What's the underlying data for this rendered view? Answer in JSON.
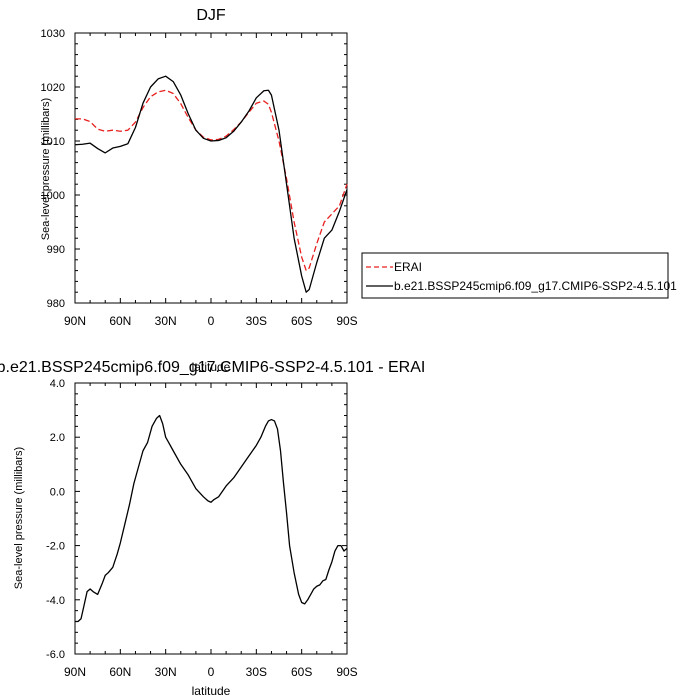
{
  "chart_data": [
    {
      "type": "line",
      "title": "DJF",
      "xlabel": "latitude",
      "ylabel": "Sea-level pressure (millibars)",
      "xlim": [
        90,
        -90
      ],
      "ylim": [
        980,
        1030
      ],
      "x_ticks": [
        90,
        60,
        30,
        0,
        -30,
        -60,
        -90
      ],
      "x_tick_labels": [
        "90N",
        "60N",
        "30N",
        "0",
        "30S",
        "60S",
        "90S"
      ],
      "y_ticks": [
        980,
        990,
        1000,
        1010,
        1020,
        1030
      ],
      "y_tick_labels": [
        "980",
        "990",
        "1000",
        "1010",
        "1020",
        "1030"
      ],
      "grid": false,
      "legend_position": "right",
      "series": [
        {
          "name": "ERAI",
          "color": "#e8201f",
          "dash": "dashed",
          "x": [
            90,
            85,
            80,
            75,
            70,
            65,
            60,
            55,
            50,
            45,
            40,
            35,
            30,
            25,
            20,
            15,
            10,
            5,
            0,
            -5,
            -10,
            -15,
            -20,
            -25,
            -30,
            -35,
            -38,
            -40,
            -45,
            -50,
            -55,
            -60,
            -63,
            -65,
            -70,
            -75,
            -80,
            -85,
            -90
          ],
          "y": [
            1014.1,
            1014.1,
            1013.6,
            1012.2,
            1011.8,
            1012.0,
            1011.8,
            1012.0,
            1013.5,
            1016.2,
            1018.2,
            1019.1,
            1019.4,
            1018.8,
            1016.9,
            1014.3,
            1012.0,
            1010.7,
            1010.2,
            1010.3,
            1010.9,
            1012.1,
            1013.5,
            1015.3,
            1017.0,
            1017.4,
            1016.8,
            1015.3,
            1010.0,
            1003.0,
            995.0,
            988.5,
            986.0,
            986.5,
            991.0,
            995.0,
            996.5,
            998.0,
            1002.0
          ]
        },
        {
          "name": "b.e21.BSSP245cmip6.f09_g17.CMIP6-SSP2-4.5.101",
          "color": "#000000",
          "dash": "solid",
          "x": [
            90,
            85,
            80,
            75,
            70,
            65,
            60,
            55,
            50,
            45,
            40,
            35,
            30,
            25,
            20,
            15,
            10,
            5,
            0,
            -5,
            -10,
            -15,
            -20,
            -25,
            -30,
            -35,
            -38,
            -40,
            -45,
            -50,
            -55,
            -60,
            -63,
            -65,
            -70,
            -75,
            -80,
            -85,
            -90
          ],
          "y": [
            1009.3,
            1009.4,
            1009.6,
            1008.6,
            1007.8,
            1008.7,
            1009.0,
            1009.5,
            1012.5,
            1017.0,
            1020.0,
            1021.5,
            1022.0,
            1021.0,
            1018.5,
            1015.0,
            1012.0,
            1010.5,
            1010.0,
            1010.1,
            1010.6,
            1011.8,
            1013.5,
            1015.5,
            1018.0,
            1019.3,
            1019.4,
            1018.5,
            1012.0,
            1002.0,
            992.0,
            985.0,
            982.0,
            982.5,
            987.5,
            992.0,
            993.5,
            997.0,
            1001.0
          ]
        }
      ]
    },
    {
      "type": "line",
      "title": "b.e21.BSSP245cmip6.f09_g17.CMIP6-SSP2-4.5.101 - ERAI",
      "xlabel": "latitude",
      "ylabel": "Sea-level pressure (millibars)",
      "xlim": [
        90,
        -90
      ],
      "ylim": [
        -6.0,
        4.0
      ],
      "x_ticks": [
        90,
        60,
        30,
        0,
        -30,
        -60,
        -90
      ],
      "x_tick_labels": [
        "90N",
        "60N",
        "30N",
        "0",
        "30S",
        "60S",
        "90S"
      ],
      "y_ticks": [
        -6,
        -4,
        -2,
        0,
        2,
        4
      ],
      "y_tick_labels": [
        "-6.0",
        "-4.0",
        "-2.0",
        "0.0",
        "2.0",
        "4.0"
      ],
      "grid": false,
      "series": [
        {
          "color": "#000000",
          "dash": "solid",
          "x": [
            90,
            88,
            86,
            84,
            82,
            80,
            78,
            75,
            72,
            70,
            68,
            65,
            62,
            60,
            57,
            54,
            51,
            48,
            45,
            42,
            39,
            36,
            34,
            32,
            30,
            28,
            25,
            20,
            15,
            10,
            5,
            2,
            0,
            -2,
            -5,
            -10,
            -15,
            -20,
            -25,
            -30,
            -33,
            -36,
            -38,
            -40,
            -42,
            -44,
            -46,
            -48,
            -50,
            -52,
            -55,
            -58,
            -60,
            -62,
            -64,
            -65,
            -66,
            -68,
            -70,
            -72,
            -74,
            -76,
            -78,
            -80,
            -82,
            -84,
            -86,
            -88,
            -90
          ],
          "y": [
            -4.8,
            -4.8,
            -4.7,
            -4.2,
            -3.7,
            -3.6,
            -3.7,
            -3.8,
            -3.4,
            -3.1,
            -3.0,
            -2.8,
            -2.3,
            -1.9,
            -1.2,
            -0.5,
            0.3,
            0.9,
            1.5,
            1.8,
            2.4,
            2.7,
            2.8,
            2.5,
            2.0,
            1.8,
            1.5,
            1.0,
            0.6,
            0.1,
            -0.2,
            -0.35,
            -0.4,
            -0.3,
            -0.2,
            0.2,
            0.5,
            0.9,
            1.3,
            1.7,
            2.0,
            2.4,
            2.6,
            2.65,
            2.6,
            2.3,
            1.5,
            0.3,
            -0.8,
            -2.0,
            -3.0,
            -3.8,
            -4.1,
            -4.15,
            -4.0,
            -3.9,
            -3.8,
            -3.6,
            -3.5,
            -3.45,
            -3.3,
            -3.25,
            -2.9,
            -2.6,
            -2.2,
            -2.0,
            -2.0,
            -2.2,
            -2.1
          ]
        }
      ]
    }
  ]
}
